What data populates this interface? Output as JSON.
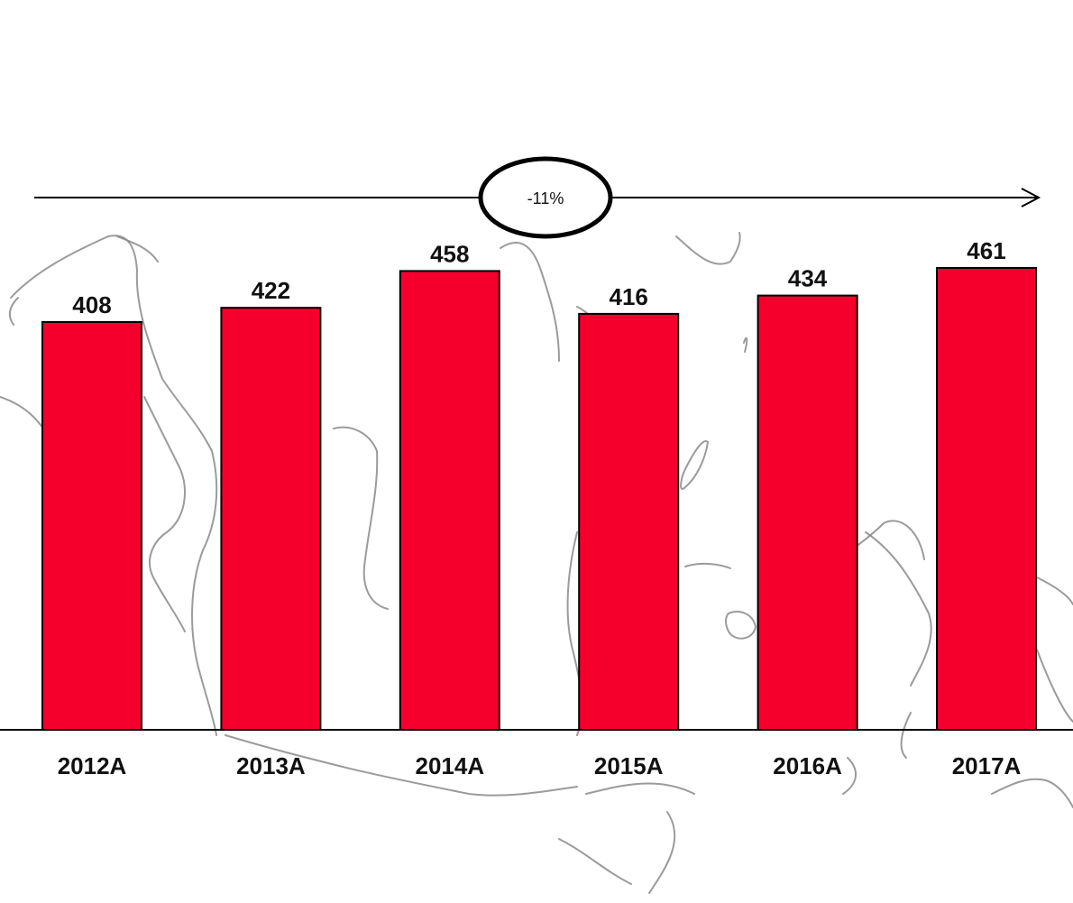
{
  "chart_data": {
    "type": "bar",
    "categories": [
      "2012A",
      "2013A",
      "2014A",
      "2015A",
      "2016A",
      "2017A"
    ],
    "values": [
      408,
      422,
      458,
      416,
      434,
      461
    ],
    "data_labels": [
      "408",
      "422",
      "458",
      "416",
      "434",
      "461"
    ],
    "title": "",
    "xlabel": "",
    "ylabel": "",
    "ylim": [
      0,
      461
    ],
    "grid": false,
    "legend": "none",
    "bar_color": "#f5002d",
    "bar_outline": "#000000"
  },
  "annotation": {
    "growth_label": "-11%"
  },
  "background": {
    "icon": "indonesia-map-outline"
  }
}
